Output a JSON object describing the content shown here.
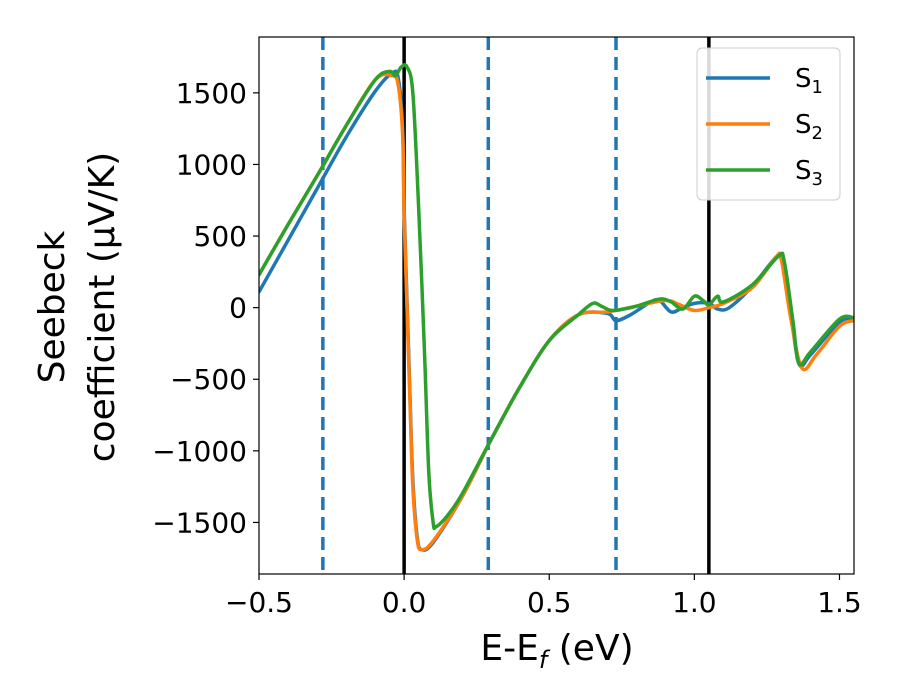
{
  "chart_data": {
    "type": "line",
    "xlabel": "E-E",
    "xlabel_sub": "f",
    "xlabel_unit": " (eV)",
    "ylabel_line1": "Seebeck",
    "ylabel_line2": "coefficient  (μV/K)",
    "xlim": [
      -0.5,
      1.55
    ],
    "ylim": [
      -1860,
      1890
    ],
    "x_ticks": [
      -0.5,
      0.0,
      0.5,
      1.0,
      1.5
    ],
    "x_tick_labels": [
      "−0.5",
      "0.0",
      "0.5",
      "1.0",
      "1.5"
    ],
    "y_ticks": [
      -1500,
      -1000,
      -500,
      0,
      500,
      1000,
      1500
    ],
    "y_tick_labels": [
      "−1500",
      "−1000",
      "−500",
      "0",
      "500",
      "1000",
      "1500"
    ],
    "grid": false,
    "legend_position": "top-right",
    "vertical_lines": [
      {
        "x": -0.28,
        "style": "dashed",
        "color": "#1f77b4"
      },
      {
        "x": 0.0,
        "style": "solid",
        "color": "#000000"
      },
      {
        "x": 0.29,
        "style": "dashed",
        "color": "#1f77b4"
      },
      {
        "x": 0.73,
        "style": "dashed",
        "color": "#1f77b4"
      },
      {
        "x": 1.05,
        "style": "solid",
        "color": "#000000"
      }
    ],
    "series": [
      {
        "name": "S",
        "sub": "1",
        "color": "#1f77b4",
        "points": [
          [
            -0.5,
            110
          ],
          [
            -0.4,
            470
          ],
          [
            -0.3,
            830
          ],
          [
            -0.2,
            1190
          ],
          [
            -0.1,
            1510
          ],
          [
            -0.04,
            1640
          ],
          [
            -0.02,
            1600
          ],
          [
            -0.005,
            1250
          ],
          [
            0.0,
            700
          ],
          [
            0.01,
            50
          ],
          [
            0.02,
            -600
          ],
          [
            0.03,
            -1200
          ],
          [
            0.045,
            -1600
          ],
          [
            0.06,
            -1690
          ],
          [
            0.1,
            -1640
          ],
          [
            0.2,
            -1320
          ],
          [
            0.3,
            -920
          ],
          [
            0.4,
            -550
          ],
          [
            0.5,
            -230
          ],
          [
            0.6,
            -50
          ],
          [
            0.7,
            -40
          ],
          [
            0.73,
            -90
          ],
          [
            0.78,
            -50
          ],
          [
            0.85,
            40
          ],
          [
            0.88,
            50
          ],
          [
            0.92,
            -30
          ],
          [
            0.96,
            0
          ],
          [
            1.0,
            30
          ],
          [
            1.05,
            30
          ],
          [
            1.08,
            -10
          ],
          [
            1.12,
            0
          ],
          [
            1.2,
            150
          ],
          [
            1.28,
            350
          ],
          [
            1.3,
            340
          ],
          [
            1.33,
            0
          ],
          [
            1.36,
            -390
          ],
          [
            1.4,
            -330
          ],
          [
            1.5,
            -100
          ],
          [
            1.55,
            -80
          ]
        ]
      },
      {
        "name": "S",
        "sub": "2",
        "color": "#ff7f0e",
        "points": [
          [
            -0.5,
            230
          ],
          [
            -0.4,
            580
          ],
          [
            -0.3,
            920
          ],
          [
            -0.2,
            1270
          ],
          [
            -0.1,
            1590
          ],
          [
            -0.04,
            1620
          ],
          [
            -0.02,
            1550
          ],
          [
            -0.005,
            1200
          ],
          [
            0.0,
            650
          ],
          [
            0.01,
            0
          ],
          [
            0.02,
            -650
          ],
          [
            0.03,
            -1250
          ],
          [
            0.045,
            -1620
          ],
          [
            0.06,
            -1690
          ],
          [
            0.1,
            -1630
          ],
          [
            0.2,
            -1320
          ],
          [
            0.3,
            -920
          ],
          [
            0.4,
            -550
          ],
          [
            0.5,
            -230
          ],
          [
            0.6,
            -50
          ],
          [
            0.7,
            -30
          ],
          [
            0.8,
            10
          ],
          [
            0.9,
            50
          ],
          [
            0.95,
            20
          ],
          [
            1.0,
            -20
          ],
          [
            1.05,
            0
          ],
          [
            1.1,
            30
          ],
          [
            1.2,
            140
          ],
          [
            1.28,
            350
          ],
          [
            1.3,
            330
          ],
          [
            1.33,
            -50
          ],
          [
            1.37,
            -420
          ],
          [
            1.42,
            -330
          ],
          [
            1.5,
            -130
          ],
          [
            1.55,
            -90
          ]
        ]
      },
      {
        "name": "S",
        "sub": "3",
        "color": "#2ca02c",
        "points": [
          [
            -0.5,
            230
          ],
          [
            -0.4,
            580
          ],
          [
            -0.3,
            920
          ],
          [
            -0.2,
            1270
          ],
          [
            -0.1,
            1590
          ],
          [
            -0.05,
            1650
          ],
          [
            -0.03,
            1620
          ],
          [
            -0.01,
            1680
          ],
          [
            0.01,
            1680
          ],
          [
            0.03,
            1500
          ],
          [
            0.05,
            700
          ],
          [
            0.07,
            -300
          ],
          [
            0.085,
            -1150
          ],
          [
            0.1,
            -1500
          ],
          [
            0.11,
            -1530
          ],
          [
            0.15,
            -1450
          ],
          [
            0.2,
            -1300
          ],
          [
            0.3,
            -920
          ],
          [
            0.4,
            -550
          ],
          [
            0.5,
            -230
          ],
          [
            0.6,
            -50
          ],
          [
            0.65,
            30
          ],
          [
            0.68,
            10
          ],
          [
            0.72,
            -20
          ],
          [
            0.8,
            10
          ],
          [
            0.88,
            60
          ],
          [
            0.92,
            40
          ],
          [
            0.96,
            -10
          ],
          [
            1.0,
            80
          ],
          [
            1.03,
            50
          ],
          [
            1.05,
            20
          ],
          [
            1.08,
            80
          ],
          [
            1.1,
            40
          ],
          [
            1.2,
            160
          ],
          [
            1.29,
            360
          ],
          [
            1.31,
            320
          ],
          [
            1.34,
            -100
          ],
          [
            1.36,
            -390
          ],
          [
            1.4,
            -310
          ],
          [
            1.5,
            -80
          ],
          [
            1.55,
            -70
          ]
        ]
      }
    ]
  }
}
